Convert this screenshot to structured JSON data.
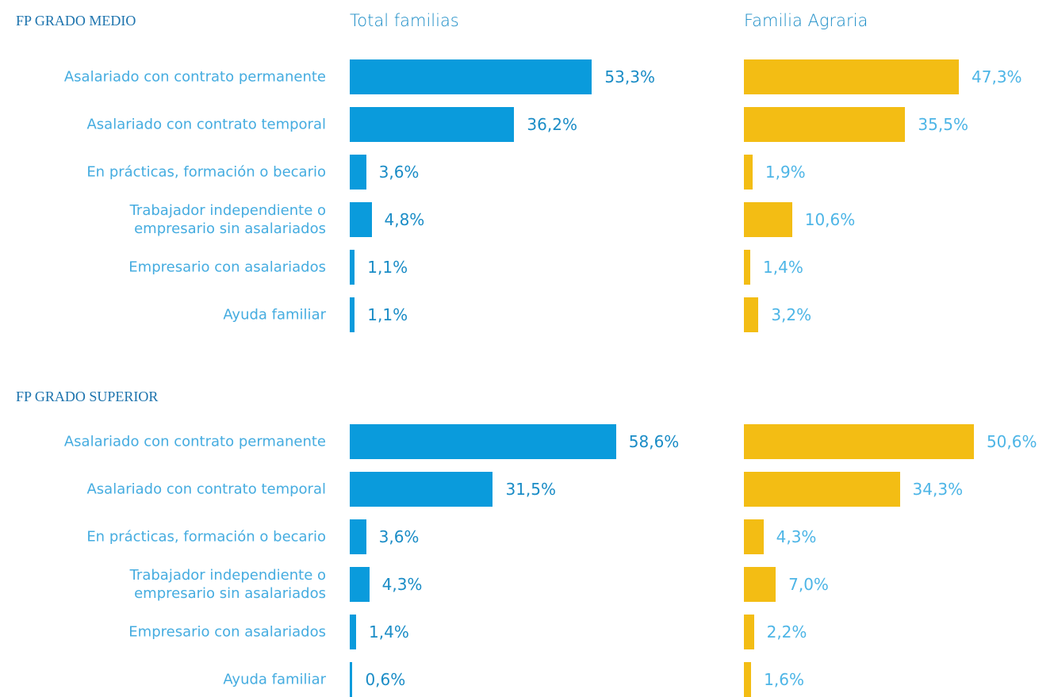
{
  "chart_data": [
    {
      "type": "bar",
      "orientation": "horizontal",
      "title": "FP GRADO MEDIO",
      "categories": [
        "Asalariado con contrato permanente",
        "Asalariado con contrato temporal",
        "En prácticas, formación o becario",
        "Trabajador independiente o empresario sin asalariados",
        "Empresario con asalariados",
        "Ayuda familiar"
      ],
      "series": [
        {
          "name": "Total familias",
          "color": "#0a9bdc",
          "values": [
            53.3,
            36.2,
            3.6,
            4.8,
            1.1,
            1.1
          ],
          "value_labels": [
            "53,3%",
            "36,2%",
            "3,6%",
            "4,8%",
            "1,1%",
            "1,1%"
          ]
        },
        {
          "name": "Familia Agraria",
          "color": "#f3bd14",
          "values": [
            47.3,
            35.5,
            1.9,
            10.6,
            1.4,
            3.2
          ],
          "value_labels": [
            "47,3%",
            "35,5%",
            "1,9%",
            "10,6%",
            "1,4%",
            "3,2%"
          ]
        }
      ]
    },
    {
      "type": "bar",
      "orientation": "horizontal",
      "title": "FP GRADO SUPERIOR",
      "categories": [
        "Asalariado con contrato permanente",
        "Asalariado con contrato temporal",
        "En prácticas, formación o becario",
        "Trabajador independiente o empresario sin asalariados",
        "Empresario con asalariados",
        "Ayuda familiar"
      ],
      "series": [
        {
          "color": "#0a9bdc",
          "values": [
            58.6,
            31.5,
            3.6,
            4.3,
            1.4,
            0.6
          ],
          "value_labels": [
            "58,6%",
            "31,5%",
            "3,6%",
            "4,3%",
            "1,4%",
            "0,6%"
          ]
        },
        {
          "color": "#f3bd14",
          "values": [
            50.6,
            34.3,
            4.3,
            7.0,
            2.2,
            1.6
          ],
          "value_labels": [
            "50,6%",
            "34,3%",
            "4,3%",
            "7,0%",
            "2,2%",
            "1,6%"
          ]
        }
      ]
    }
  ]
}
